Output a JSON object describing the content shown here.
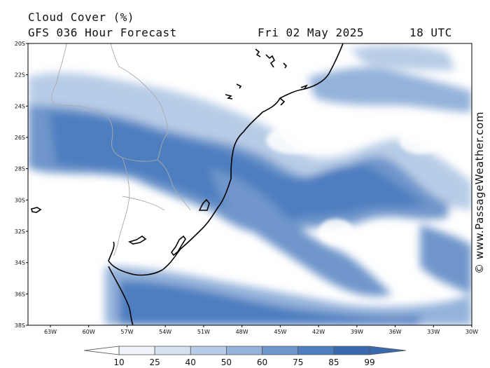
{
  "header": {
    "title": "Cloud Cover (%)",
    "model": "GFS 036 Hour Forecast",
    "date": "Fri 02 May 2025",
    "time": "18 UTC"
  },
  "credit": "© www.PassageWeather.com",
  "map": {
    "lat_labels": [
      "20S",
      "22S",
      "24S",
      "26S",
      "28S",
      "30S",
      "32S",
      "34S",
      "36S",
      "38S"
    ],
    "lon_labels": [
      "63W",
      "60W",
      "57W",
      "54W",
      "51W",
      "48W",
      "45W",
      "42W",
      "39W",
      "36W",
      "33W",
      "30W"
    ],
    "colors": {
      "land_border": "#aaaaaa",
      "coast": "#000000",
      "frame": "#000000"
    }
  },
  "colorbar": {
    "labels": [
      "10",
      "25",
      "40",
      "50",
      "60",
      "75",
      "85",
      "99"
    ],
    "colors": [
      "#ffffff",
      "#eef3fa",
      "#d6e2f1",
      "#b7cce6",
      "#94b2da",
      "#6f96cb",
      "#4e7ebf",
      "#3a6aad"
    ]
  }
}
